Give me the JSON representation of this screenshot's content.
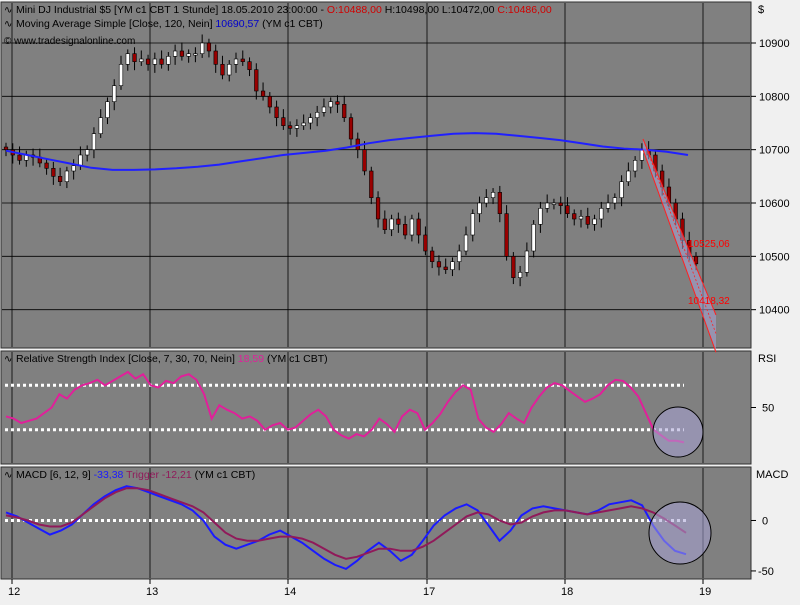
{
  "price_panel": {
    "line1": {
      "icon": "trend-line-icon",
      "instrument": "Mini DJ Industrial $5 [YM c1 CBT  1 Stunde] 18.05.2010 23:00:00 - ",
      "open": "O:10488,00",
      "high": " H:10498,00",
      "low": " L:10472,00",
      "close": " C:10486,00"
    },
    "line2": {
      "icon": "trend-line-icon",
      "label": "Moving Average Simple [Close, 120, Nein]",
      "value": " 10690,57",
      "suffix": " (YM c1 CBT)"
    },
    "copyright": "© www.tradesignalonline.com",
    "currency": "$",
    "annotation_upper": "10525,06",
    "annotation_lower": "10418,32"
  },
  "rsi_panel": {
    "icon": "trend-line-icon",
    "label": "Relative Strength Index [Close, 7, 30, 70, Nein]",
    "value": " 18,59",
    "suffix": " (YM c1 CBT)",
    "axis_title": "RSI"
  },
  "macd_panel": {
    "icon": "trend-line-icon",
    "label": "MACD [6, 12, 9]",
    "value": " -33,38",
    "trigger_label": " Trigger",
    "trigger_value": " -12,21",
    "suffix": " (YM c1 CBT)",
    "axis_title": "MACD"
  },
  "colors": {
    "panel_bg": "#808080",
    "frame_bg": "#f0f0f0",
    "up_candle": "#ffffff",
    "down_candle": "#990000",
    "moving_average": "#2020ff",
    "rsi_line": "#e0209a",
    "macd_line": "#1a1aff",
    "trigger_line": "#901a5a",
    "channel": "#ff2020",
    "annotation": "#ff0000",
    "highlight_fill": "#a7a3d6"
  },
  "chart_data": [
    {
      "type": "candlestick",
      "title": "Mini DJ Industrial $5 [YM c1 CBT  1 Stunde]",
      "x_ticks": [
        "12",
        "13",
        "14",
        "17",
        "18",
        "19"
      ],
      "ylim": [
        10330,
        10975
      ],
      "y_ticks": [
        10400,
        10500,
        10600,
        10700,
        10800,
        10900
      ],
      "grid": true,
      "close_series": [
        10700,
        10690,
        10680,
        10690,
        10686,
        10675,
        10665,
        10650,
        10640,
        10660,
        10670,
        10690,
        10700,
        10730,
        10760,
        10790,
        10820,
        10860,
        10880,
        10865,
        10870,
        10860,
        10870,
        10860,
        10875,
        10885,
        10875,
        10880,
        10880,
        10900,
        10885,
        10860,
        10840,
        10860,
        10870,
        10865,
        10850,
        10810,
        10800,
        10780,
        10760,
        10745,
        10740,
        10745,
        10750,
        10760,
        10770,
        10780,
        10790,
        10785,
        10760,
        10720,
        10700,
        10660,
        10610,
        10570,
        10550,
        10570,
        10560,
        10540,
        10570,
        10540,
        10510,
        10490,
        10480,
        10475,
        10490,
        10510,
        10540,
        10580,
        10600,
        10610,
        10620,
        10580,
        10500,
        10460,
        10470,
        10510,
        10560,
        10590,
        10600,
        10600,
        10595,
        10580,
        10570,
        10575,
        10560,
        10570,
        10590,
        10600,
        10610,
        10640,
        10660,
        10680,
        10700,
        10690,
        10660,
        10630,
        10600,
        10570,
        10530,
        10500,
        10486
      ],
      "moving_average_120": [
        10698,
        10690,
        10682,
        10674,
        10666,
        10662,
        10662,
        10663,
        10665,
        10668,
        10672,
        10678,
        10684,
        10690,
        10694,
        10698,
        10704,
        10712,
        10718,
        10722,
        10726,
        10730,
        10731,
        10730,
        10726,
        10722,
        10718,
        10712,
        10706,
        10702,
        10700,
        10696,
        10690
      ],
      "channel_upper": [
        [
          10720,
          0
        ],
        [
          10390,
          1
        ]
      ],
      "channel_lower": [
        [
          10700,
          0
        ],
        [
          10320,
          1
        ]
      ],
      "annotations": [
        {
          "text": "10525,06",
          "price": 10525.06
        },
        {
          "text": "10418,32",
          "price": 10418.32
        }
      ]
    },
    {
      "type": "line",
      "title": "Relative Strength Index [Close, 7, 30, 70, Nein]",
      "ylim": [
        0,
        100
      ],
      "y_ticks": [
        50
      ],
      "levels": [
        30,
        70
      ],
      "series": [
        {
          "name": "Relative Strength Index",
          "values": [
            42,
            40,
            36,
            38,
            40,
            45,
            50,
            62,
            58,
            66,
            70,
            72,
            75,
            70,
            74,
            78,
            82,
            76,
            80,
            70,
            68,
            74,
            72,
            78,
            80,
            75,
            62,
            40,
            52,
            48,
            45,
            40,
            42,
            38,
            30,
            34,
            36,
            30,
            32,
            38,
            44,
            48,
            42,
            30,
            25,
            22,
            26,
            24,
            30,
            40,
            35,
            28,
            42,
            48,
            45,
            30,
            36,
            44,
            55,
            64,
            70,
            66,
            40,
            32,
            28,
            35,
            45,
            40,
            36,
            50,
            60,
            68,
            72,
            70,
            65,
            60,
            55,
            58,
            62,
            70,
            75,
            74,
            68,
            60,
            45,
            30,
            25,
            20,
            20,
            18.59
          ]
        }
      ]
    },
    {
      "type": "line",
      "title": "MACD [6, 12, 9]",
      "ylim": [
        -57,
        52
      ],
      "y_ticks": [
        -50,
        0
      ],
      "levels": [
        0
      ],
      "series": [
        {
          "name": "MACD",
          "values": [
            8,
            4,
            -2,
            -8,
            -14,
            -10,
            -4,
            6,
            16,
            24,
            30,
            34,
            32,
            28,
            24,
            20,
            16,
            10,
            0,
            -16,
            -24,
            -28,
            -24,
            -20,
            -14,
            -10,
            -16,
            -22,
            -30,
            -38,
            -44,
            -48,
            -40,
            -30,
            -22,
            -30,
            -40,
            -34,
            -20,
            -5,
            5,
            12,
            16,
            10,
            -5,
            -20,
            -10,
            5,
            12,
            14,
            12,
            10,
            8,
            6,
            10,
            16,
            18,
            20,
            15,
            -5,
            -20,
            -30,
            -33.38
          ]
        },
        {
          "name": "Trigger",
          "values": [
            5,
            3,
            0,
            -4,
            -6,
            -6,
            -2,
            6,
            14,
            22,
            28,
            32,
            32,
            30,
            26,
            22,
            18,
            14,
            8,
            -2,
            -12,
            -18,
            -20,
            -20,
            -18,
            -16,
            -16,
            -18,
            -22,
            -28,
            -34,
            -38,
            -36,
            -32,
            -28,
            -28,
            -30,
            -30,
            -26,
            -20,
            -12,
            -4,
            4,
            8,
            6,
            0,
            -4,
            -2,
            4,
            8,
            10,
            10,
            8,
            6,
            8,
            10,
            12,
            14,
            12,
            8,
            2,
            -5,
            -12.21
          ]
        }
      ]
    }
  ]
}
